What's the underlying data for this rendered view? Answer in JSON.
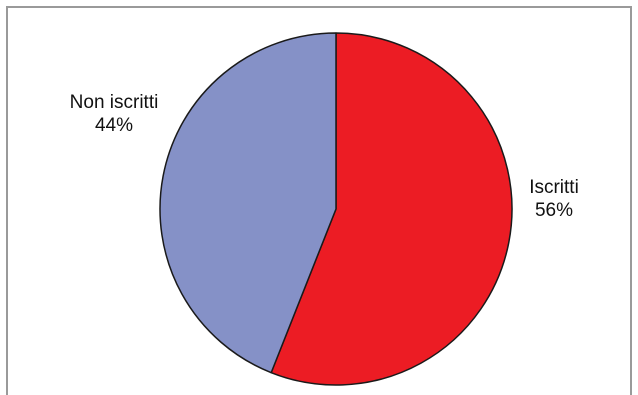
{
  "chart_data": {
    "type": "pie",
    "title": "",
    "start": "12 o'clock",
    "direction": "clockwise",
    "slices": [
      {
        "label": "Iscritti",
        "value": 56,
        "value_label": "56%",
        "color": "#ec1c24"
      },
      {
        "label": "Non iscritti",
        "value": 44,
        "value_label": "44%",
        "color": "#8591c7"
      }
    ]
  }
}
